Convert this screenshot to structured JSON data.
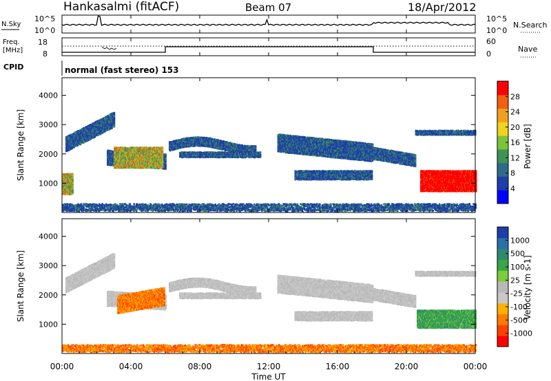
{
  "header": {
    "title": "Hankasalmi (fitACF)",
    "beam": "Beam 07",
    "date": "18/Apr/2012"
  },
  "top_panels": {
    "nsky_label": "N.Sky",
    "nsearch_label": "N.Search",
    "noise_ticks": [
      "10^5",
      "10^0"
    ],
    "freq_label_1": "Freq.",
    "freq_label_2": "[MHz]",
    "freq_ticks": [
      "18",
      "8"
    ],
    "nave_label": "Nave",
    "nave_ticks": [
      "60",
      "0"
    ],
    "cpid_label": "CPID",
    "cpid_text": "normal (fast stereo) 153"
  },
  "colors": {
    "power_scale": [
      "#0000ff",
      "#1e3ea8",
      "#2e6b8a",
      "#3d9456",
      "#7cc43c",
      "#f2d21e",
      "#f0a020",
      "#f06010",
      "#ff0000"
    ],
    "velocity_scale": [
      "#ff0000",
      "#ff4000",
      "#ff7a00",
      "#ffb000",
      "#c8c8c8",
      "#b8b8b8",
      "#7acd3c",
      "#3aa64a",
      "#2e8a6e",
      "#2a70a8",
      "#1e3ea8"
    ]
  },
  "chart_data": [
    {
      "type": "heatmap",
      "panel": "power",
      "ylabel": "Slant Range [km]",
      "yticks": [
        1000,
        2000,
        3000,
        4000
      ],
      "ylim": [
        0,
        4600
      ],
      "colorbar_label": "Power [dB]",
      "colorbar_ticks": [
        "28",
        "24",
        "20",
        "16",
        "12",
        "8",
        "4"
      ],
      "colorbar_range": [
        0,
        30
      ]
    },
    {
      "type": "heatmap",
      "panel": "velocity",
      "ylabel": "Slant Range [km]",
      "yticks": [
        1000,
        2000,
        3000,
        4000
      ],
      "ylim": [
        0,
        4600
      ],
      "colorbar_label": "Velocity [m s-1]",
      "colorbar_ticks": [
        "1000",
        "500",
        "100",
        "25",
        "-25",
        "-100",
        "-500",
        "-1000"
      ]
    }
  ],
  "x_axis": {
    "label": "Time UT",
    "ticks": [
      "00:00",
      "04:00",
      "08:00",
      "12:00",
      "16:00",
      "20:00",
      "00:00"
    ],
    "xlim_hours": [
      0,
      24
    ]
  }
}
